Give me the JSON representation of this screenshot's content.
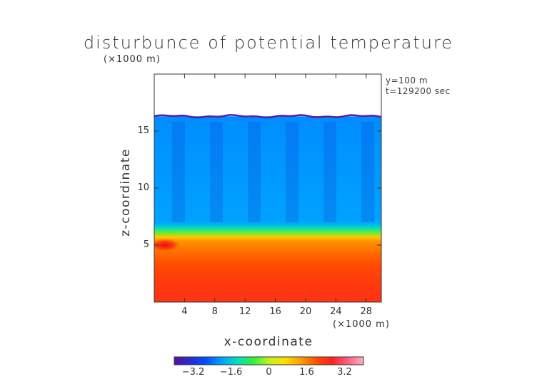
{
  "chart_data": {
    "type": "heatmap",
    "title": "disturbunce of potential temperature",
    "xlabel": "x-coordinate",
    "ylabel": "z-coordinate",
    "x_unit": "(×1000 m)",
    "z_unit": "(×1000 m)",
    "annotations": [
      "y=100 m",
      "t=129200 sec"
    ],
    "xlim": [
      0,
      30
    ],
    "ylim": [
      0,
      20
    ],
    "x_ticks": [
      4,
      8,
      12,
      16,
      20,
      24,
      28
    ],
    "y_ticks": [
      5,
      10,
      15
    ],
    "colorbar": {
      "range": [
        -4,
        4
      ],
      "ticks": [
        "−3.2",
        "−1.6",
        "0",
        "1.6",
        "3.2"
      ],
      "tick_values": [
        -3.2,
        -1.6,
        0,
        1.6,
        3.2
      ],
      "colors": [
        "#5a0fa0",
        "#2a2ad6",
        "#0050ff",
        "#00a0ff",
        "#00e0c0",
        "#30f040",
        "#c0f020",
        "#ffe000",
        "#ffa000",
        "#ff5000",
        "#ff2020",
        "#ff6080",
        "#ffb0c0"
      ]
    },
    "field": {
      "domain_top_z": 16.3,
      "inversion_z": 5.6,
      "upper_value": -2.0,
      "surface_value": 2.4,
      "warm_blob_x": 1.4,
      "warm_blob_z": 5.0
    }
  }
}
